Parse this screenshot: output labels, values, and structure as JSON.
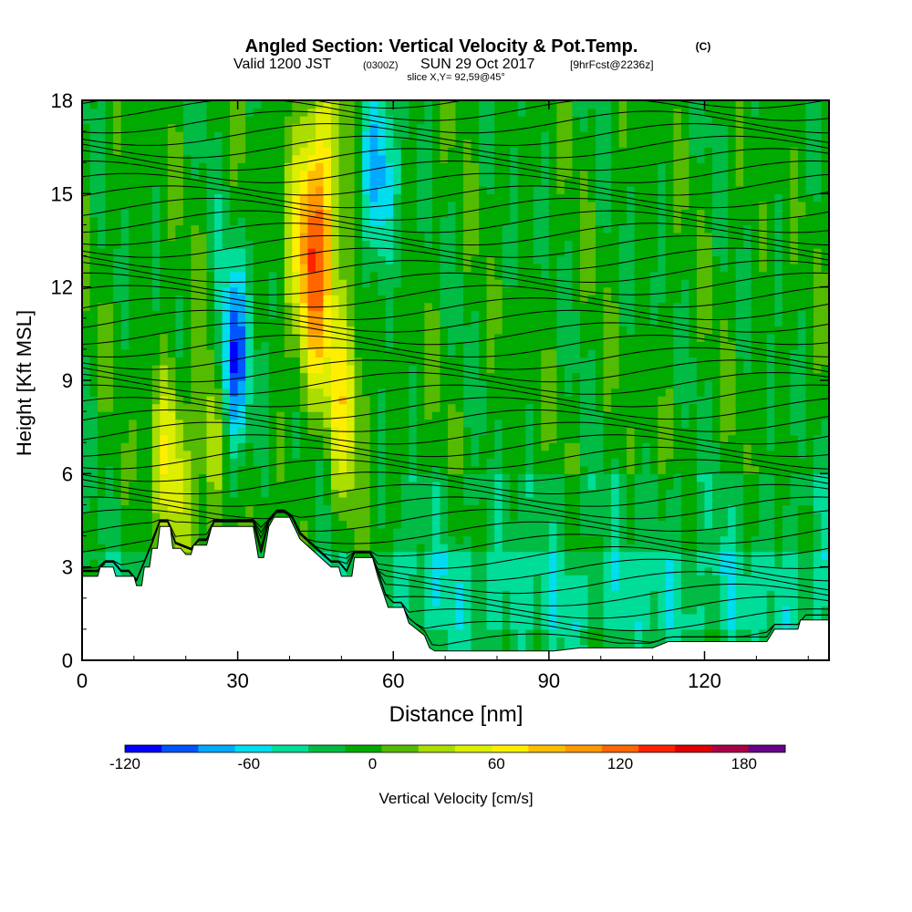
{
  "header": {
    "title": "Angled Section: Vertical Velocity & Pot.Temp.",
    "title_mark": "(C)",
    "valid_prefix": "Valid 1200 JST",
    "valid_utc": "(0300Z)",
    "valid_date": "SUN 29 Oct 2017",
    "forecast": "[9hrFcst@2236z]",
    "slice": "slice X,Y= 92,59@45°"
  },
  "chart_data": {
    "type": "heatmap",
    "xlabel": "Distance [nm]",
    "ylabel": "Height [Kft MSL]",
    "xlim": [
      0,
      144
    ],
    "ylim": [
      0,
      18
    ],
    "xticks": [
      0,
      30,
      60,
      90,
      120
    ],
    "yticks": [
      0,
      3,
      6,
      9,
      12,
      15,
      18
    ],
    "x_tick_labels": [
      "0",
      "30",
      "60",
      "90",
      "120"
    ],
    "y_tick_labels": [
      "0",
      "3",
      "6",
      "9",
      "12",
      "15",
      "18"
    ],
    "terrain_height_kft": [
      [
        0,
        2.7
      ],
      [
        3,
        2.7
      ],
      [
        3.5,
        3.0
      ],
      [
        6,
        3.0
      ],
      [
        6.5,
        2.7
      ],
      [
        10,
        2.7
      ],
      [
        10.5,
        2.4
      ],
      [
        11.5,
        2.4
      ],
      [
        12,
        3.0
      ],
      [
        13,
        3.0
      ],
      [
        13.5,
        3.6
      ],
      [
        14.5,
        3.6
      ],
      [
        15,
        4.3
      ],
      [
        17,
        4.3
      ],
      [
        17.5,
        3.6
      ],
      [
        19,
        3.6
      ],
      [
        20,
        3.4
      ],
      [
        21,
        3.4
      ],
      [
        21.5,
        3.7
      ],
      [
        24,
        3.7
      ],
      [
        25,
        4.3
      ],
      [
        33,
        4.3
      ],
      [
        34,
        3.3
      ],
      [
        35,
        3.3
      ],
      [
        36,
        4.3
      ],
      [
        37,
        4.6
      ],
      [
        40,
        4.6
      ],
      [
        42,
        3.9
      ],
      [
        44,
        3.6
      ],
      [
        46,
        3.3
      ],
      [
        48,
        3.0
      ],
      [
        49.5,
        3.0
      ],
      [
        50,
        2.7
      ],
      [
        52,
        2.7
      ],
      [
        52.5,
        3.3
      ],
      [
        56,
        3.3
      ],
      [
        57,
        2.7
      ],
      [
        58,
        2.2
      ],
      [
        59,
        1.7
      ],
      [
        62,
        1.7
      ],
      [
        63,
        1.2
      ],
      [
        66,
        0.8
      ],
      [
        67,
        0.4
      ],
      [
        68,
        0.3
      ],
      [
        88,
        0.3
      ],
      [
        91,
        0.3
      ],
      [
        96,
        0.4
      ],
      [
        110,
        0.4
      ],
      [
        113,
        0.6
      ],
      [
        132,
        0.6
      ],
      [
        133.5,
        1.0
      ],
      [
        138,
        1.0
      ],
      [
        138.5,
        1.3
      ],
      [
        144,
        1.3
      ]
    ],
    "colorbar": {
      "label": "Vertical Velocity [cm/s]",
      "ticks": [
        -120,
        -60,
        0,
        60,
        120,
        180
      ],
      "tick_labels": [
        "-120",
        "-60",
        "0",
        "60",
        "120",
        "180"
      ],
      "range": [
        -120,
        200
      ],
      "step": 20,
      "colors": [
        "#0000ff",
        "#0055ff",
        "#00aaff",
        "#00ddee",
        "#00dd99",
        "#00bb44",
        "#00aa00",
        "#55bb00",
        "#aadd00",
        "#ddee00",
        "#ffee00",
        "#ffbb00",
        "#ff9900",
        "#ff6600",
        "#ff2200",
        "#dd0000",
        "#aa0044",
        "#660088"
      ]
    },
    "features": [
      {
        "kind": "updraft",
        "x": 45,
        "y": 13.5,
        "w_peak": 150
      },
      {
        "kind": "updraft",
        "x": 51,
        "y": 8.5,
        "w_peak": 70
      },
      {
        "kind": "updraft",
        "x": 17,
        "y": 6.5,
        "w_peak": 70
      },
      {
        "kind": "updraft",
        "x": 25,
        "y": 7.0,
        "w_peak": 60
      },
      {
        "kind": "downdraft",
        "x": 29,
        "y": 9.5,
        "w_peak": -110
      },
      {
        "kind": "downdraft",
        "x": 57,
        "y": 15.5,
        "w_peak": -80
      }
    ]
  }
}
